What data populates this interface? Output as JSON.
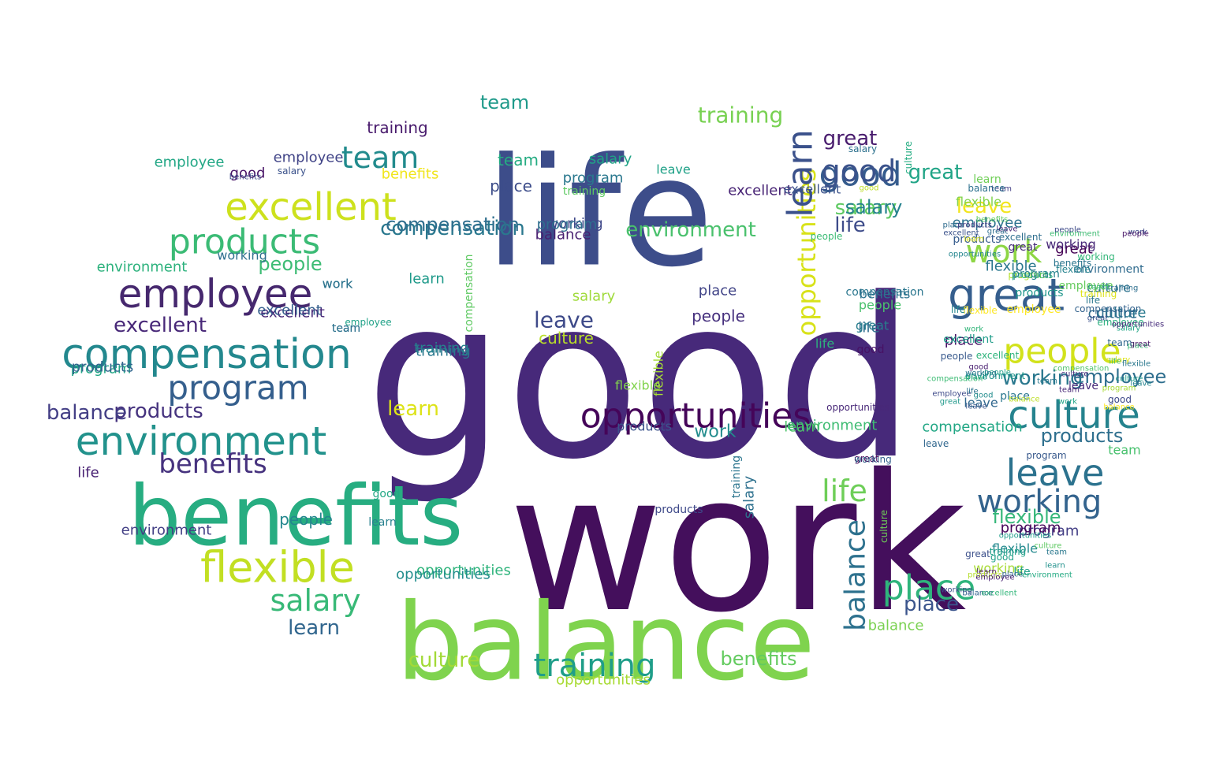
{
  "words": [
    {
      "text": "good",
      "color": "#47297a"
    },
    {
      "text": "work",
      "color": "#440f5c"
    },
    {
      "text": "life",
      "color": "#3d4d8a"
    },
    {
      "text": "balance",
      "color": "#7fd34e"
    },
    {
      "text": "benefits",
      "color": "#27ad81"
    },
    {
      "text": "compensation",
      "color": "#23888e"
    },
    {
      "text": "employee",
      "color": "#46286e"
    },
    {
      "text": "excellent",
      "color": "#cde11d"
    },
    {
      "text": "environment",
      "color": "#22928c"
    },
    {
      "text": "flexible",
      "color": "#c2df23"
    },
    {
      "text": "program",
      "color": "#355f8d"
    },
    {
      "text": "products",
      "color": "#3bbb75"
    },
    {
      "text": "team",
      "color": "#228b8d"
    },
    {
      "text": "opportunities",
      "color": "#450559"
    },
    {
      "text": "culture",
      "color": "#25838e"
    },
    {
      "text": "great",
      "color": "#355e8d"
    },
    {
      "text": "good",
      "color": "#365c8d"
    },
    {
      "text": "leave",
      "color": "#2c728e"
    },
    {
      "text": "working",
      "color": "#33638d"
    },
    {
      "text": "people",
      "color": "#d2e21b"
    },
    {
      "text": "place",
      "color": "#2fb47c"
    },
    {
      "text": "training",
      "color": "#1f9e89"
    },
    {
      "text": "salary",
      "color": "#38b977"
    },
    {
      "text": "learn",
      "color": "#dde318"
    },
    {
      "text": "opportunities",
      "color": "#d8e219"
    },
    {
      "text": "balance",
      "color": "#2d718e"
    },
    {
      "text": "learn",
      "color": "#31668e"
    },
    {
      "text": "training",
      "color": "#78d152"
    },
    {
      "text": "team",
      "color": "#1f9a8a"
    },
    {
      "text": "good",
      "color": "#3b528b"
    },
    {
      "text": "great",
      "color": "#20a486"
    },
    {
      "text": "great",
      "color": "#481b6d"
    },
    {
      "text": "leave",
      "color": "#f2e51d"
    },
    {
      "text": "work",
      "color": "#8ed645"
    },
    {
      "text": "environment",
      "color": "#4ac16d"
    },
    {
      "text": "life",
      "color": "#3e4c8a"
    },
    {
      "text": "salary",
      "color": "#5ec962"
    },
    {
      "text": "employee",
      "color": "#2c718e"
    },
    {
      "text": "benefits",
      "color": "#46327e"
    },
    {
      "text": "program",
      "color": "#433e85"
    },
    {
      "text": "excellent",
      "color": "#482878"
    },
    {
      "text": "people",
      "color": "#3dbc74"
    },
    {
      "text": "culture",
      "color": "#297a8e"
    },
    {
      "text": "employee",
      "color": "#2e6e8e"
    },
    {
      "text": "working",
      "color": "#2a788e"
    },
    {
      "text": "products",
      "color": "#2e6f8e"
    },
    {
      "text": "flexible",
      "color": "#35b779"
    },
    {
      "text": "place",
      "color": "#3a548c"
    },
    {
      "text": "life",
      "color": "#6ece58"
    },
    {
      "text": "leave",
      "color": "#3e4a89"
    },
    {
      "text": "culture",
      "color": "#bade28"
    },
    {
      "text": "salary",
      "color": "#26828e"
    },
    {
      "text": "learn",
      "color": "#3b518b"
    },
    {
      "text": "culture",
      "color": "#a2da37"
    },
    {
      "text": "training",
      "color": "#2a778e"
    },
    {
      "text": "benefits",
      "color": "#63cb5f"
    },
    {
      "text": "opportunities",
      "color": "#a8db34"
    },
    {
      "text": "excellent",
      "color": "#482475"
    },
    {
      "text": "products",
      "color": "#46337f"
    },
    {
      "text": "program",
      "color": "#21a585"
    },
    {
      "text": "balance",
      "color": "#433e85"
    },
    {
      "text": "environment",
      "color": "#423f85"
    },
    {
      "text": "excellent",
      "color": "#482878"
    },
    {
      "text": "training",
      "color": "#481a6c"
    },
    {
      "text": "team",
      "color": "#25ac82"
    },
    {
      "text": "compensation",
      "color": "#2a788e"
    },
    {
      "text": "benefits",
      "color": "#f1e51d"
    },
    {
      "text": "place",
      "color": "#3d4d8a"
    },
    {
      "text": "program",
      "color": "#2a788e"
    },
    {
      "text": "employee",
      "color": "#414487"
    },
    {
      "text": "good",
      "color": "#481467"
    },
    {
      "text": "learn",
      "color": "#4ec36b"
    },
    {
      "text": "training",
      "color": "#5ec962"
    },
    {
      "text": "excellent",
      "color": "#3b528b"
    },
    {
      "text": "work",
      "color": "#2a788e"
    },
    {
      "text": "working",
      "color": "#3f4889"
    },
    {
      "text": "balance",
      "color": "#481f70"
    },
    {
      "text": "compensation",
      "color": "#2e6e8e"
    },
    {
      "text": "people",
      "color": "#24878e"
    },
    {
      "text": "flexible",
      "color": "#2a778e"
    },
    {
      "text": "great",
      "color": "#440154"
    },
    {
      "text": "program",
      "color": "#450559"
    },
    {
      "text": "people",
      "color": "#46307e"
    },
    {
      "text": "leave",
      "color": "#1fa187"
    },
    {
      "text": "culture",
      "color": "#2e6d8e"
    },
    {
      "text": "salary",
      "color": "#20a386"
    },
    {
      "text": "life",
      "color": "#2f6c8e"
    },
    {
      "text": "employee",
      "color": "#22a785"
    },
    {
      "text": "products",
      "color": "#31668e"
    },
    {
      "text": "environment",
      "color": "#2db27d"
    },
    {
      "text": "work",
      "color": "#2c738e"
    },
    {
      "text": "team",
      "color": "#31688e"
    },
    {
      "text": "flexible",
      "color": "#81d34d"
    },
    {
      "text": "working",
      "color": "#2e6f8e"
    },
    {
      "text": "salary",
      "color": "#9fda3a"
    },
    {
      "text": "people",
      "color": "#4ac16d"
    },
    {
      "text": "place",
      "color": "#414487"
    },
    {
      "text": "good",
      "color": "#22a884"
    },
    {
      "text": "life",
      "color": "#482173"
    },
    {
      "text": "learn",
      "color": "#1f9a8a"
    },
    {
      "text": "opportunities",
      "color": "#2fb47c"
    },
    {
      "text": "balance",
      "color": "#7ad151"
    },
    {
      "text": "team",
      "color": "#2c738e"
    },
    {
      "text": "program",
      "color": "#2e6e8e"
    },
    {
      "text": "flexible",
      "color": "#a5db36"
    },
    {
      "text": "work",
      "color": "#228c8d"
    },
    {
      "text": "salary",
      "color": "#3b528b"
    },
    {
      "text": "products",
      "color": "#3b528b"
    },
    {
      "text": "benefits",
      "color": "#3e4a89"
    },
    {
      "text": "great",
      "color": "#440154"
    },
    {
      "text": "culture",
      "color": "#2c728e"
    },
    {
      "text": "employee",
      "color": "#29af7f"
    },
    {
      "text": "training",
      "color": "#26828e"
    },
    {
      "text": "excellent",
      "color": "#355f8d"
    },
    {
      "text": "environment",
      "color": "#3fbc73"
    },
    {
      "text": "working",
      "color": "#a8db34"
    },
    {
      "text": "leave",
      "color": "#31678e"
    },
    {
      "text": "place",
      "color": "#481467"
    },
    {
      "text": "compensation",
      "color": "#22a785"
    },
    {
      "text": "good",
      "color": "#471164"
    },
    {
      "text": "people",
      "color": "#3bbb75"
    },
    {
      "text": "life",
      "color": "#2db27d"
    },
    {
      "text": "great",
      "color": "#287d8e"
    },
    {
      "text": "products",
      "color": "#3e4989"
    },
    {
      "text": "opportunities",
      "color": "#228d8d"
    },
    {
      "text": "compensation",
      "color": "#5ec962"
    },
    {
      "text": "training",
      "color": "#2b758e"
    },
    {
      "text": "salary",
      "color": "#2d708e"
    },
    {
      "text": "flexible",
      "color": "#23898e"
    },
    {
      "text": "benefits",
      "color": "#2b758e"
    },
    {
      "text": "team",
      "color": "#48c16e"
    },
    {
      "text": "employee",
      "color": "#1fa187"
    },
    {
      "text": "program",
      "color": "#b5de2b"
    },
    {
      "text": "great",
      "color": "#3c508b"
    },
    {
      "text": "working",
      "color": "#482878"
    },
    {
      "text": "good",
      "color": "#bddf26"
    },
    {
      "text": "learn",
      "color": "#27808e"
    },
    {
      "text": "culture",
      "color": "#6ece58"
    },
    {
      "text": "place",
      "color": "#2a778e"
    },
    {
      "text": "environment",
      "color": "#1f988b"
    },
    {
      "text": "work",
      "color": "#3e4c8a"
    },
    {
      "text": "leave",
      "color": "#31688e"
    },
    {
      "text": "balance",
      "color": "#32648e"
    },
    {
      "text": "life",
      "color": "#1fa088"
    },
    {
      "text": "excellent",
      "color": "#2fb47c"
    },
    {
      "text": "flexible",
      "color": "#fde725"
    },
    {
      "text": "products",
      "color": "#365c8d"
    },
    {
      "text": "opportunities",
      "color": "#482878"
    },
    {
      "text": "team",
      "color": "#433e85"
    },
    {
      "text": "program",
      "color": "#38598c"
    },
    {
      "text": "people",
      "color": "#3e4a89"
    },
    {
      "text": "excellent",
      "color": "#1e9c89"
    },
    {
      "text": "employee",
      "color": "#65cb5e"
    },
    {
      "text": "good",
      "color": "#3e4989"
    },
    {
      "text": "great",
      "color": "#472c7a"
    },
    {
      "text": "compensation",
      "color": "#2a768e"
    },
    {
      "text": "training",
      "color": "#dde318"
    },
    {
      "text": "culture",
      "color": "#25ac82"
    },
    {
      "text": "working",
      "color": "#34618d"
    },
    {
      "text": "learn",
      "color": "#70cf57"
    },
    {
      "text": "flexible",
      "color": "#81d34d"
    },
    {
      "text": "life",
      "color": "#24878e"
    },
    {
      "text": "products",
      "color": "#1f968b"
    },
    {
      "text": "salary",
      "color": "#2d718e"
    },
    {
      "text": "place",
      "color": "#3aba76"
    },
    {
      "text": "opportunities",
      "color": "#1f9e89"
    },
    {
      "text": "environment",
      "color": "#2f6b8e"
    },
    {
      "text": "leave",
      "color": "#472a7a"
    },
    {
      "text": "balance",
      "color": "#2d718e"
    },
    {
      "text": "people",
      "color": "#481769"
    },
    {
      "text": "team",
      "color": "#3dbc74"
    },
    {
      "text": "benefits",
      "color": "#2c728e"
    },
    {
      "text": "great",
      "color": "#3b528b"
    },
    {
      "text": "products",
      "color": "#2db27d"
    },
    {
      "text": "compensation",
      "color": "#33628d"
    },
    {
      "text": "program",
      "color": "#26828e"
    },
    {
      "text": "working",
      "color": "#34b679"
    },
    {
      "text": "flexible",
      "color": "#25838e"
    },
    {
      "text": "good",
      "color": "#1fa088"
    },
    {
      "text": "team",
      "color": "#2a788e"
    },
    {
      "text": "learn",
      "color": "#48186a"
    },
    {
      "text": "employee",
      "color": "#fde725"
    },
    {
      "text": "excellent",
      "color": "#2e6e8e"
    },
    {
      "text": "leave",
      "color": "#482878"
    },
    {
      "text": "salary",
      "color": "#21a585"
    },
    {
      "text": "great",
      "color": "#481769"
    },
    {
      "text": "people",
      "color": "#38598c"
    },
    {
      "text": "training",
      "color": "#1fa088"
    },
    {
      "text": "life",
      "color": "#2a788e"
    },
    {
      "text": "culture",
      "color": "#5ec962"
    },
    {
      "text": "place",
      "color": "#1f958b"
    },
    {
      "text": "balance",
      "color": "#bddf26"
    },
    {
      "text": "opportunities",
      "color": "#24868e"
    },
    {
      "text": "environment",
      "color": "#3fbc73"
    },
    {
      "text": "team",
      "color": "#31678e"
    },
    {
      "text": "work",
      "color": "#33b67a"
    },
    {
      "text": "compensation",
      "color": "#4ec36b"
    },
    {
      "text": "products",
      "color": "#b5de2b"
    },
    {
      "text": "place",
      "color": "#2f6c8e"
    },
    {
      "text": "working",
      "color": "#3c4f8a"
    },
    {
      "text": "program",
      "color": "#a8db34"
    },
    {
      "text": "good",
      "color": "#481f70"
    },
    {
      "text": "leave",
      "color": "#25848e"
    },
    {
      "text": "excellent",
      "color": "#32b67a"
    },
    {
      "text": "great",
      "color": "#2e6d8e"
    },
    {
      "text": "employee",
      "color": "#3e4a89"
    },
    {
      "text": "team",
      "color": "#482878"
    },
    {
      "text": "salary",
      "color": "#dde318"
    },
    {
      "text": "learn",
      "color": "#21918c"
    },
    {
      "text": "benefits",
      "color": "#5ec962"
    },
    {
      "text": "flexible",
      "color": "#2a788e"
    },
    {
      "text": "life",
      "color": "#2c728e"
    },
    {
      "text": "opportunities",
      "color": "#472d7b"
    },
    {
      "text": "people",
      "color": "#1fa088"
    },
    {
      "text": "culture",
      "color": "#46317e"
    },
    {
      "text": "place",
      "color": "#31668e"
    },
    {
      "text": "good",
      "color": "#228c8d"
    },
    {
      "text": "environment",
      "color": "#24aa83"
    },
    {
      "text": "compensation",
      "color": "#3dbc74"
    },
    {
      "text": "products",
      "color": "#433d84"
    },
    {
      "text": "training",
      "color": "#2e6f8e"
    },
    {
      "text": "work",
      "color": "#20a386"
    },
    {
      "text": "employee",
      "color": "#482071"
    },
    {
      "text": "balance",
      "color": "#fde725"
    },
    {
      "text": "great",
      "color": "#1f998a"
    },
    {
      "text": "working",
      "color": "#2a768e"
    },
    {
      "text": "learn",
      "color": "#dde318"
    },
    {
      "text": "life",
      "color": "#4ac16d"
    },
    {
      "text": "leave",
      "color": "#39568c"
    },
    {
      "text": "team",
      "color": "#2a788e"
    },
    {
      "text": "culture",
      "color": "#1f9a8a"
    },
    {
      "text": "excellent",
      "color": "#3b528b"
    },
    {
      "text": "program",
      "color": "#25ab82"
    },
    {
      "text": "place",
      "color": "#7ad151"
    },
    {
      "text": "products",
      "color": "#2d708e"
    },
    {
      "text": "flexible",
      "color": "#e5e419"
    },
    {
      "text": "opportunities",
      "color": "#2fb47c"
    },
    {
      "text": "people",
      "color": "#481668"
    },
    {
      "text": "employee",
      "color": "#75d054"
    },
    {
      "text": "good",
      "color": "#3d4d8a"
    },
    {
      "text": "great",
      "color": "#2d718e"
    },
    {
      "text": "compensation",
      "color": "#355f8d"
    },
    {
      "text": "salary",
      "color": "#9bd93c"
    },
    {
      "text": "benefits",
      "color": "#27808e"
    },
    {
      "text": "learn",
      "color": "#2a768e"
    }
  ]
}
